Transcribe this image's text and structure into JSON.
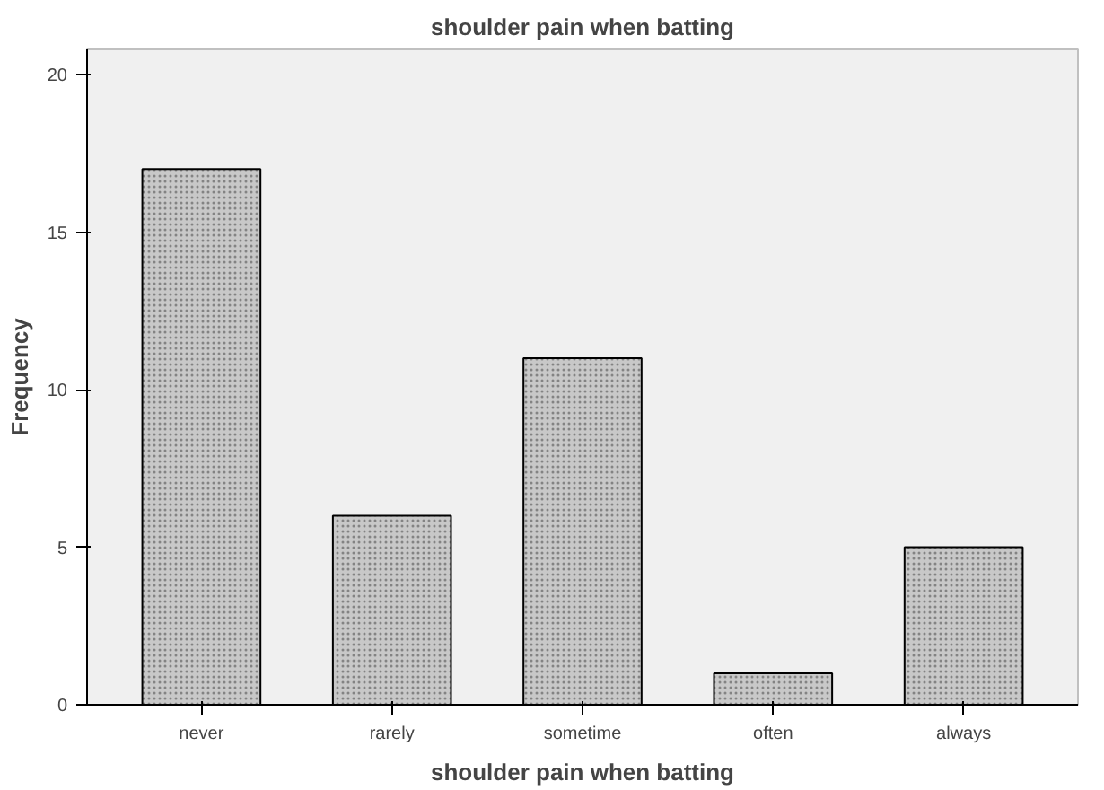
{
  "chart_data": {
    "type": "bar",
    "title": "shoulder pain when batting",
    "xlabel": "shoulder pain when batting",
    "ylabel": "Frequency",
    "categories": [
      "never",
      "rarely",
      "sometime",
      "often",
      "always"
    ],
    "values": [
      17,
      6,
      11,
      1,
      5
    ],
    "color": "#c8c8c8",
    "ylim": [
      0,
      20.8
    ],
    "yticks": [
      0,
      5,
      10,
      15,
      20
    ],
    "grid": false
  }
}
